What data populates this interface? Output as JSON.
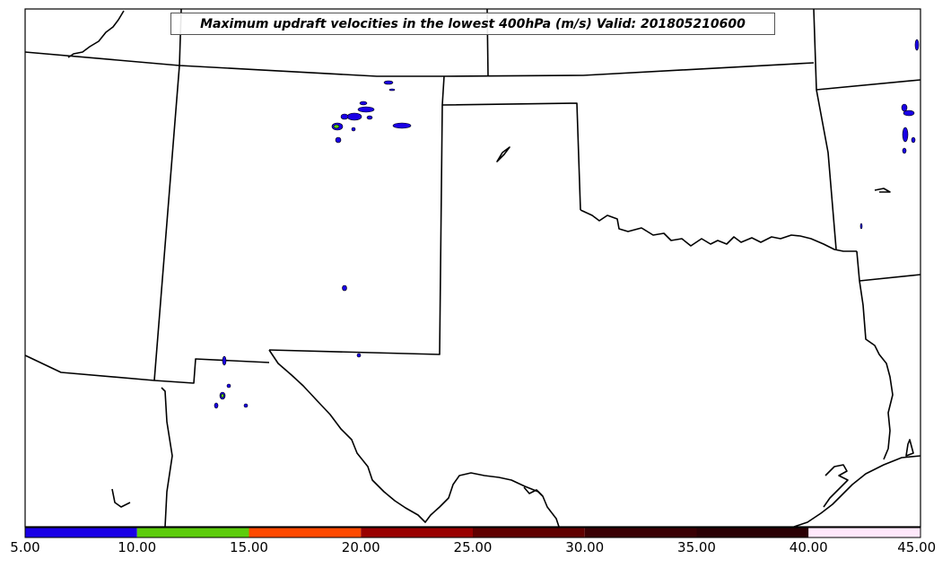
{
  "title": "Maximum updraft velocities in the lowest 400hPa (m/s) Valid: 201805210600",
  "colorbar": {
    "ticks": [
      "5.00",
      "10.00",
      "15.00",
      "20.00",
      "25.00",
      "30.00",
      "35.00",
      "40.00",
      "45.00"
    ],
    "colors": [
      "#1a00e6",
      "#5dcc0c",
      "#ff4a00",
      "#990000",
      "#600000",
      "#3a0004",
      "#2a0004",
      "#ffccf5"
    ],
    "last_color": "#ffe8fb"
  },
  "colors": {
    "boundary": "#000000",
    "storm_low": "#1a00e6",
    "storm_mid": "#5dcc0c"
  }
}
